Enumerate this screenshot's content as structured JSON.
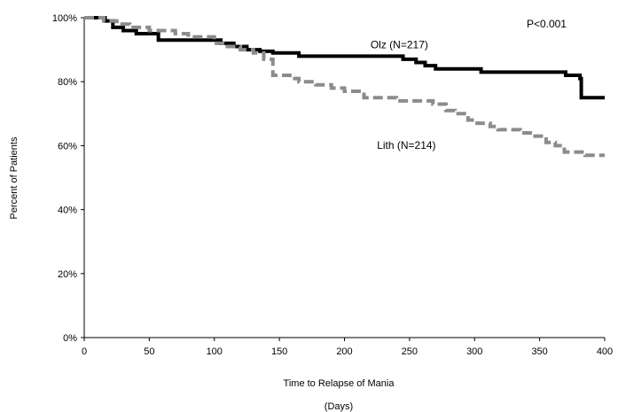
{
  "chart_data": {
    "type": "line",
    "title": "",
    "xlabel": "Time to Relapse of Mania",
    "xlabel_units": "(Days)",
    "ylabel": "Percent of Patients",
    "xlim": [
      0,
      400
    ],
    "ylim": [
      0,
      100
    ],
    "x_ticks": [
      0,
      50,
      100,
      150,
      200,
      250,
      300,
      350,
      400
    ],
    "y_ticks": [
      0,
      20,
      40,
      60,
      80,
      100
    ],
    "y_tick_labels": [
      "0%",
      "20%",
      "40%",
      "60%",
      "80%",
      "100%"
    ],
    "grid": false,
    "legend": "none",
    "annotations": [
      {
        "text": "P<0.001",
        "x": 340,
        "y": 97
      },
      {
        "text": "Olz (N=217)",
        "x": 220,
        "y": 90.5
      },
      {
        "text": "Lith (N=214)",
        "x": 225,
        "y": 59
      }
    ],
    "series": [
      {
        "name": "Olz (N=217)",
        "color": "#000000",
        "style": "solid",
        "step": true,
        "points": [
          [
            0,
            100
          ],
          [
            16,
            99
          ],
          [
            22,
            97
          ],
          [
            30,
            96
          ],
          [
            40,
            95
          ],
          [
            57,
            93
          ],
          [
            95,
            93
          ],
          [
            105,
            92
          ],
          [
            115,
            91
          ],
          [
            125,
            90
          ],
          [
            135,
            89.5
          ],
          [
            145,
            89
          ],
          [
            165,
            88
          ],
          [
            225,
            88
          ],
          [
            245,
            87
          ],
          [
            255,
            86
          ],
          [
            262,
            85
          ],
          [
            270,
            84
          ],
          [
            295,
            84
          ],
          [
            305,
            83
          ],
          [
            335,
            83
          ],
          [
            370,
            82
          ],
          [
            381,
            81
          ],
          [
            382,
            75
          ],
          [
            400,
            75
          ]
        ]
      },
      {
        "name": "Lith (N=214)",
        "color": "#8c8c8c",
        "style": "dashed",
        "step": true,
        "points": [
          [
            0,
            100
          ],
          [
            15,
            99
          ],
          [
            25,
            98
          ],
          [
            35,
            97
          ],
          [
            50,
            96
          ],
          [
            70,
            95
          ],
          [
            80,
            94
          ],
          [
            100,
            92
          ],
          [
            110,
            91
          ],
          [
            120,
            90
          ],
          [
            130,
            89
          ],
          [
            138,
            87
          ],
          [
            145,
            82
          ],
          [
            158,
            81
          ],
          [
            165,
            80
          ],
          [
            178,
            79
          ],
          [
            190,
            78
          ],
          [
            200,
            77
          ],
          [
            215,
            75
          ],
          [
            240,
            74
          ],
          [
            263,
            74
          ],
          [
            268,
            73
          ],
          [
            278,
            71
          ],
          [
            285,
            70
          ],
          [
            295,
            68
          ],
          [
            302,
            67
          ],
          [
            312,
            66
          ],
          [
            318,
            65
          ],
          [
            335,
            64
          ],
          [
            345,
            63
          ],
          [
            355,
            61
          ],
          [
            362,
            60
          ],
          [
            369,
            58
          ],
          [
            385,
            57
          ],
          [
            400,
            57
          ]
        ]
      }
    ]
  }
}
